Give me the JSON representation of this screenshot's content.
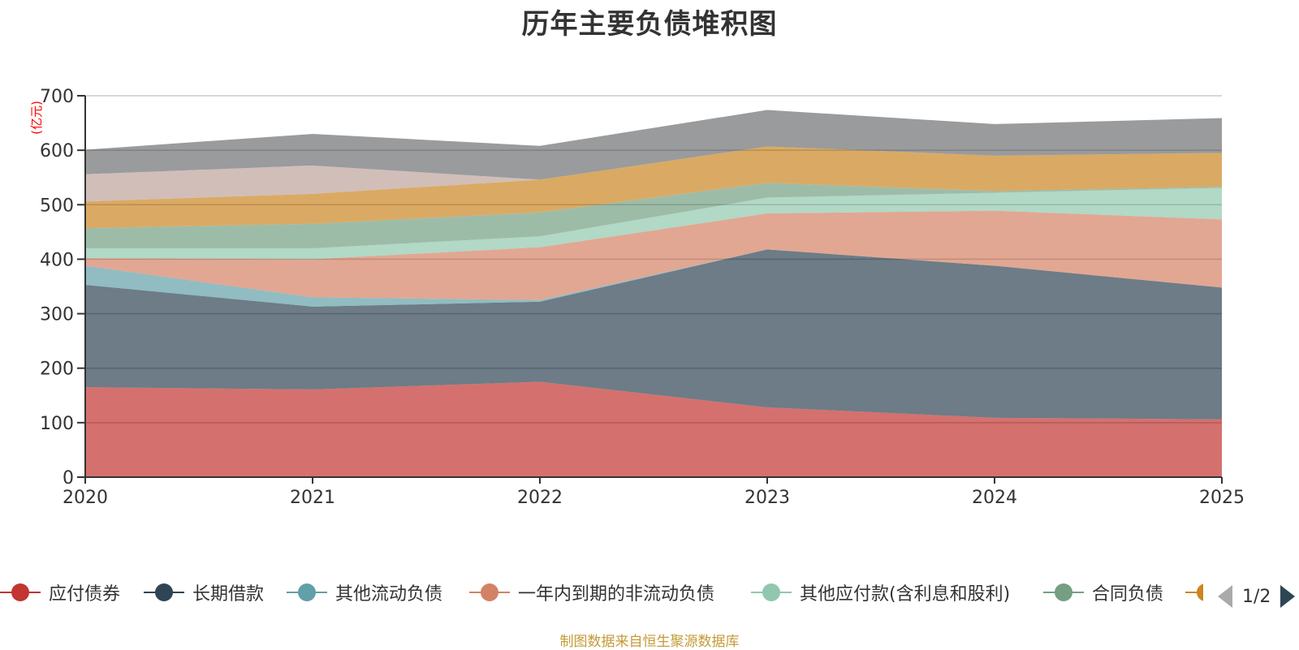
{
  "title": "历年主要负债堆积图",
  "footer": "制图数据来自恒生聚源数据库",
  "legend": {
    "items": [
      {
        "label": "应付债券",
        "color": "#c23531"
      },
      {
        "label": "长期借款",
        "color": "#2f4554"
      },
      {
        "label": "其他流动负债",
        "color": "#61a0a8"
      },
      {
        "label": "一年内到期的非流动负债",
        "color": "#d48265"
      },
      {
        "label": "其他应付款(含利息和股利)",
        "color": "#91c7ae"
      },
      {
        "label": "合同负债",
        "color": "#749f83"
      },
      {
        "label": "",
        "color": "#ca8622"
      }
    ],
    "pager": {
      "text": "1/2",
      "prev_icon": "triangle-left-icon",
      "next_icon": "triangle-right-icon"
    }
  },
  "chart_data": {
    "type": "area",
    "stacked": true,
    "title": "历年主要负债堆积图",
    "xlabel": "",
    "ylabel": "(亿元)",
    "x": [
      "2020",
      "2021",
      "2022",
      "2023",
      "2024",
      "2025"
    ],
    "ylim": [
      0,
      700
    ],
    "yticks": [
      0,
      100,
      200,
      300,
      400,
      500,
      600,
      700
    ],
    "grid": true,
    "legend_position": "bottom",
    "series": [
      {
        "name": "应付债券",
        "color": "#c23531",
        "values": [
          165,
          161,
          175,
          128,
          109,
          106
        ]
      },
      {
        "name": "长期借款",
        "color": "#2f4554",
        "values": [
          188,
          152,
          147,
          290,
          279,
          242
        ]
      },
      {
        "name": "其他流动负债",
        "color": "#61a0a8",
        "values": [
          35,
          17,
          3,
          0,
          0,
          0
        ]
      },
      {
        "name": "一年内到期的非流动负债",
        "color": "#d48265",
        "values": [
          14,
          70,
          97,
          66,
          101,
          125
        ]
      },
      {
        "name": "其他应付款(含利息和股利)",
        "color": "#91c7ae",
        "values": [
          18,
          20,
          20,
          29,
          33,
          58
        ]
      },
      {
        "name": "合同负债",
        "color": "#749f83",
        "values": [
          37,
          45,
          44,
          27,
          3,
          2
        ]
      },
      {
        "name": "",
        "color": "#ca8622",
        "values": [
          49,
          55,
          60,
          67,
          65,
          62
        ]
      },
      {
        "name": "",
        "color": "#bda29a",
        "values": [
          50,
          52,
          0,
          0,
          0,
          0
        ]
      },
      {
        "name": "",
        "color": "#6e7074",
        "values": [
          45,
          58,
          62,
          67,
          58,
          64
        ]
      }
    ]
  }
}
